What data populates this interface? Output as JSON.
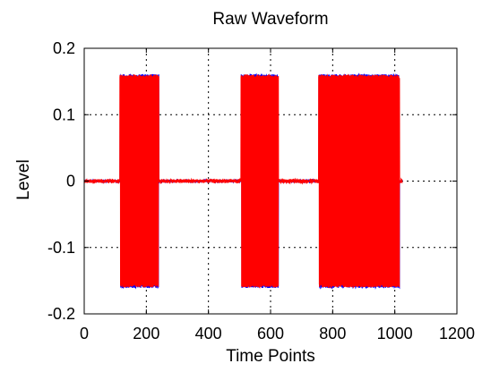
{
  "chart_data": {
    "type": "line",
    "title": "Raw Waveform",
    "xlabel": "Time Points",
    "ylabel": "Level",
    "xlim": [
      0,
      1200
    ],
    "ylim": [
      -0.2,
      0.2
    ],
    "x_ticks": [
      "0",
      "200",
      "400",
      "600",
      "800",
      "1000",
      "1200"
    ],
    "y_ticks": [
      "-0.2",
      "-0.1",
      "0",
      "0.1",
      "0.2"
    ],
    "grid": true,
    "legend": "none",
    "colors": {
      "series_overlay": "#ff0000",
      "series_under": "#0000ff",
      "grid": "#000000",
      "frame": "#000000"
    },
    "series": [
      {
        "color": "#0000ff",
        "noise_level": 0.002,
        "bursts": [
          {
            "x_start": 115,
            "x_end": 240,
            "amplitude": 0.161
          },
          {
            "x_start": 505,
            "x_end": 625,
            "amplitude": 0.161
          },
          {
            "x_start": 755,
            "x_end": 1015,
            "amplitude": 0.161
          }
        ]
      },
      {
        "color": "#ff0000",
        "noise_level": 0.003,
        "bursts": [
          {
            "x_start": 115,
            "x_end": 240,
            "amplitude": 0.16
          },
          {
            "x_start": 505,
            "x_end": 625,
            "amplitude": 0.16
          },
          {
            "x_start": 755,
            "x_end": 1015,
            "amplitude": 0.16
          }
        ]
      }
    ]
  }
}
